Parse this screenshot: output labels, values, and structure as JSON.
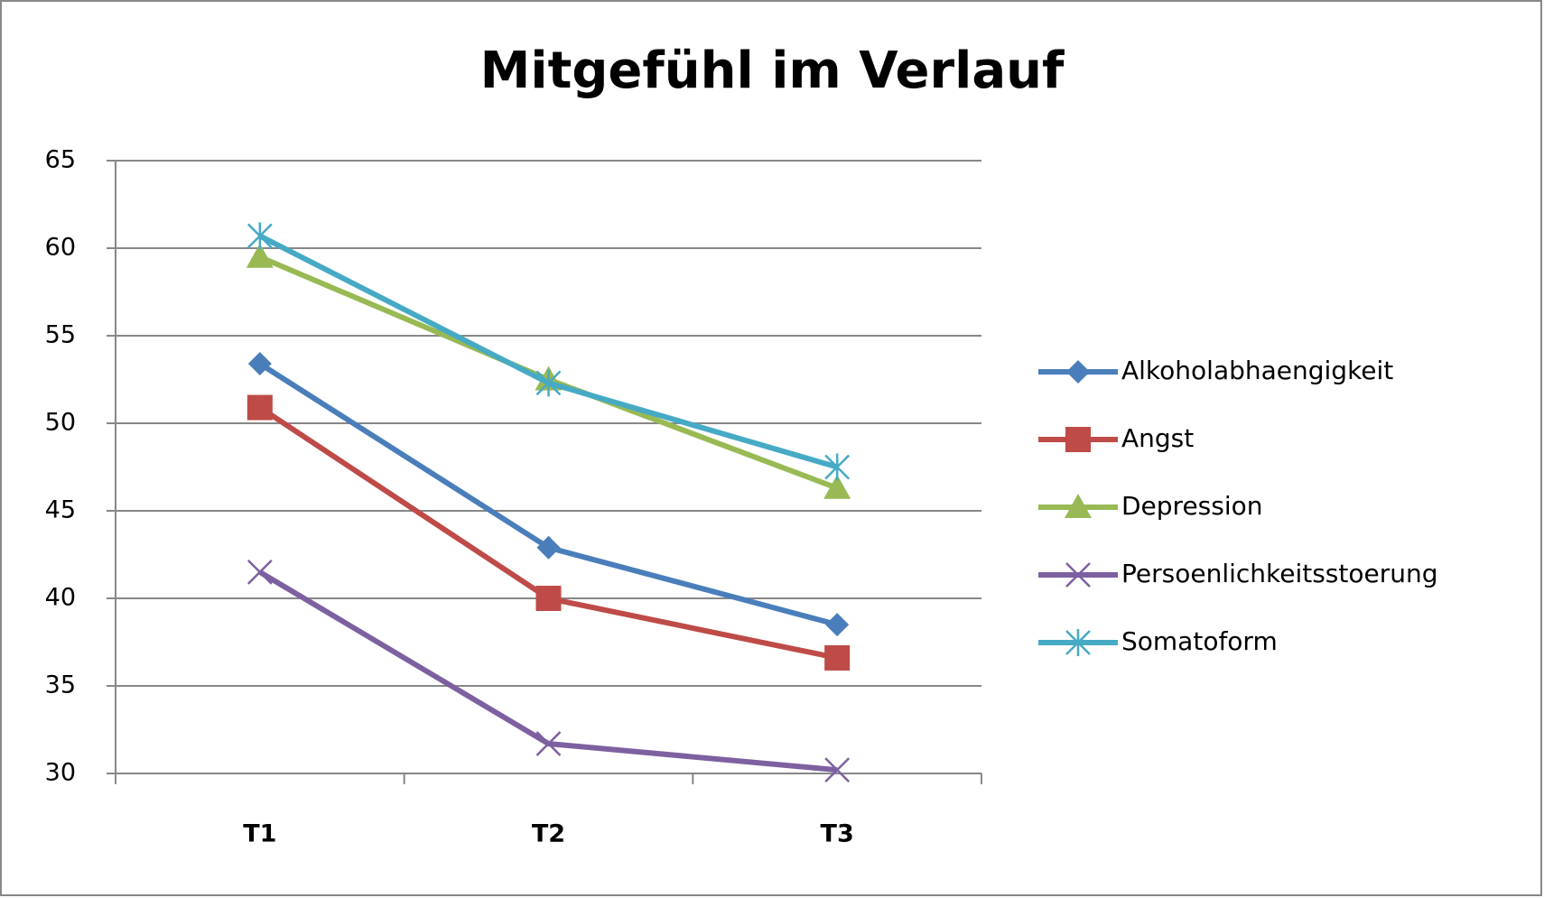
{
  "chart_data": {
    "type": "line",
    "title": "Mitgefühl im Verlauf",
    "categories": [
      "T1",
      "T2",
      "T3"
    ],
    "series": [
      {
        "name": "Alkoholabhaengigkeit",
        "color": "#4a7ebb",
        "marker": "diamond",
        "values": [
          53.4,
          42.9,
          38.5
        ]
      },
      {
        "name": "Angst",
        "color": "#be4b48",
        "marker": "square",
        "values": [
          50.9,
          40.0,
          36.6
        ]
      },
      {
        "name": "Depression",
        "color": "#98b954",
        "marker": "triangle",
        "values": [
          59.5,
          52.5,
          46.3
        ]
      },
      {
        "name": "Persoenlichkeitsstoerung",
        "color": "#7d60a0",
        "marker": "x",
        "values": [
          41.5,
          31.7,
          30.2
        ]
      },
      {
        "name": "Somatoform",
        "color": "#46aac5",
        "marker": "star",
        "values": [
          60.7,
          52.3,
          47.5
        ]
      }
    ],
    "ylim": [
      30,
      65
    ],
    "yticks": [
      30,
      35,
      40,
      45,
      50,
      55,
      60,
      65
    ],
    "grid": true,
    "legend": "right"
  }
}
